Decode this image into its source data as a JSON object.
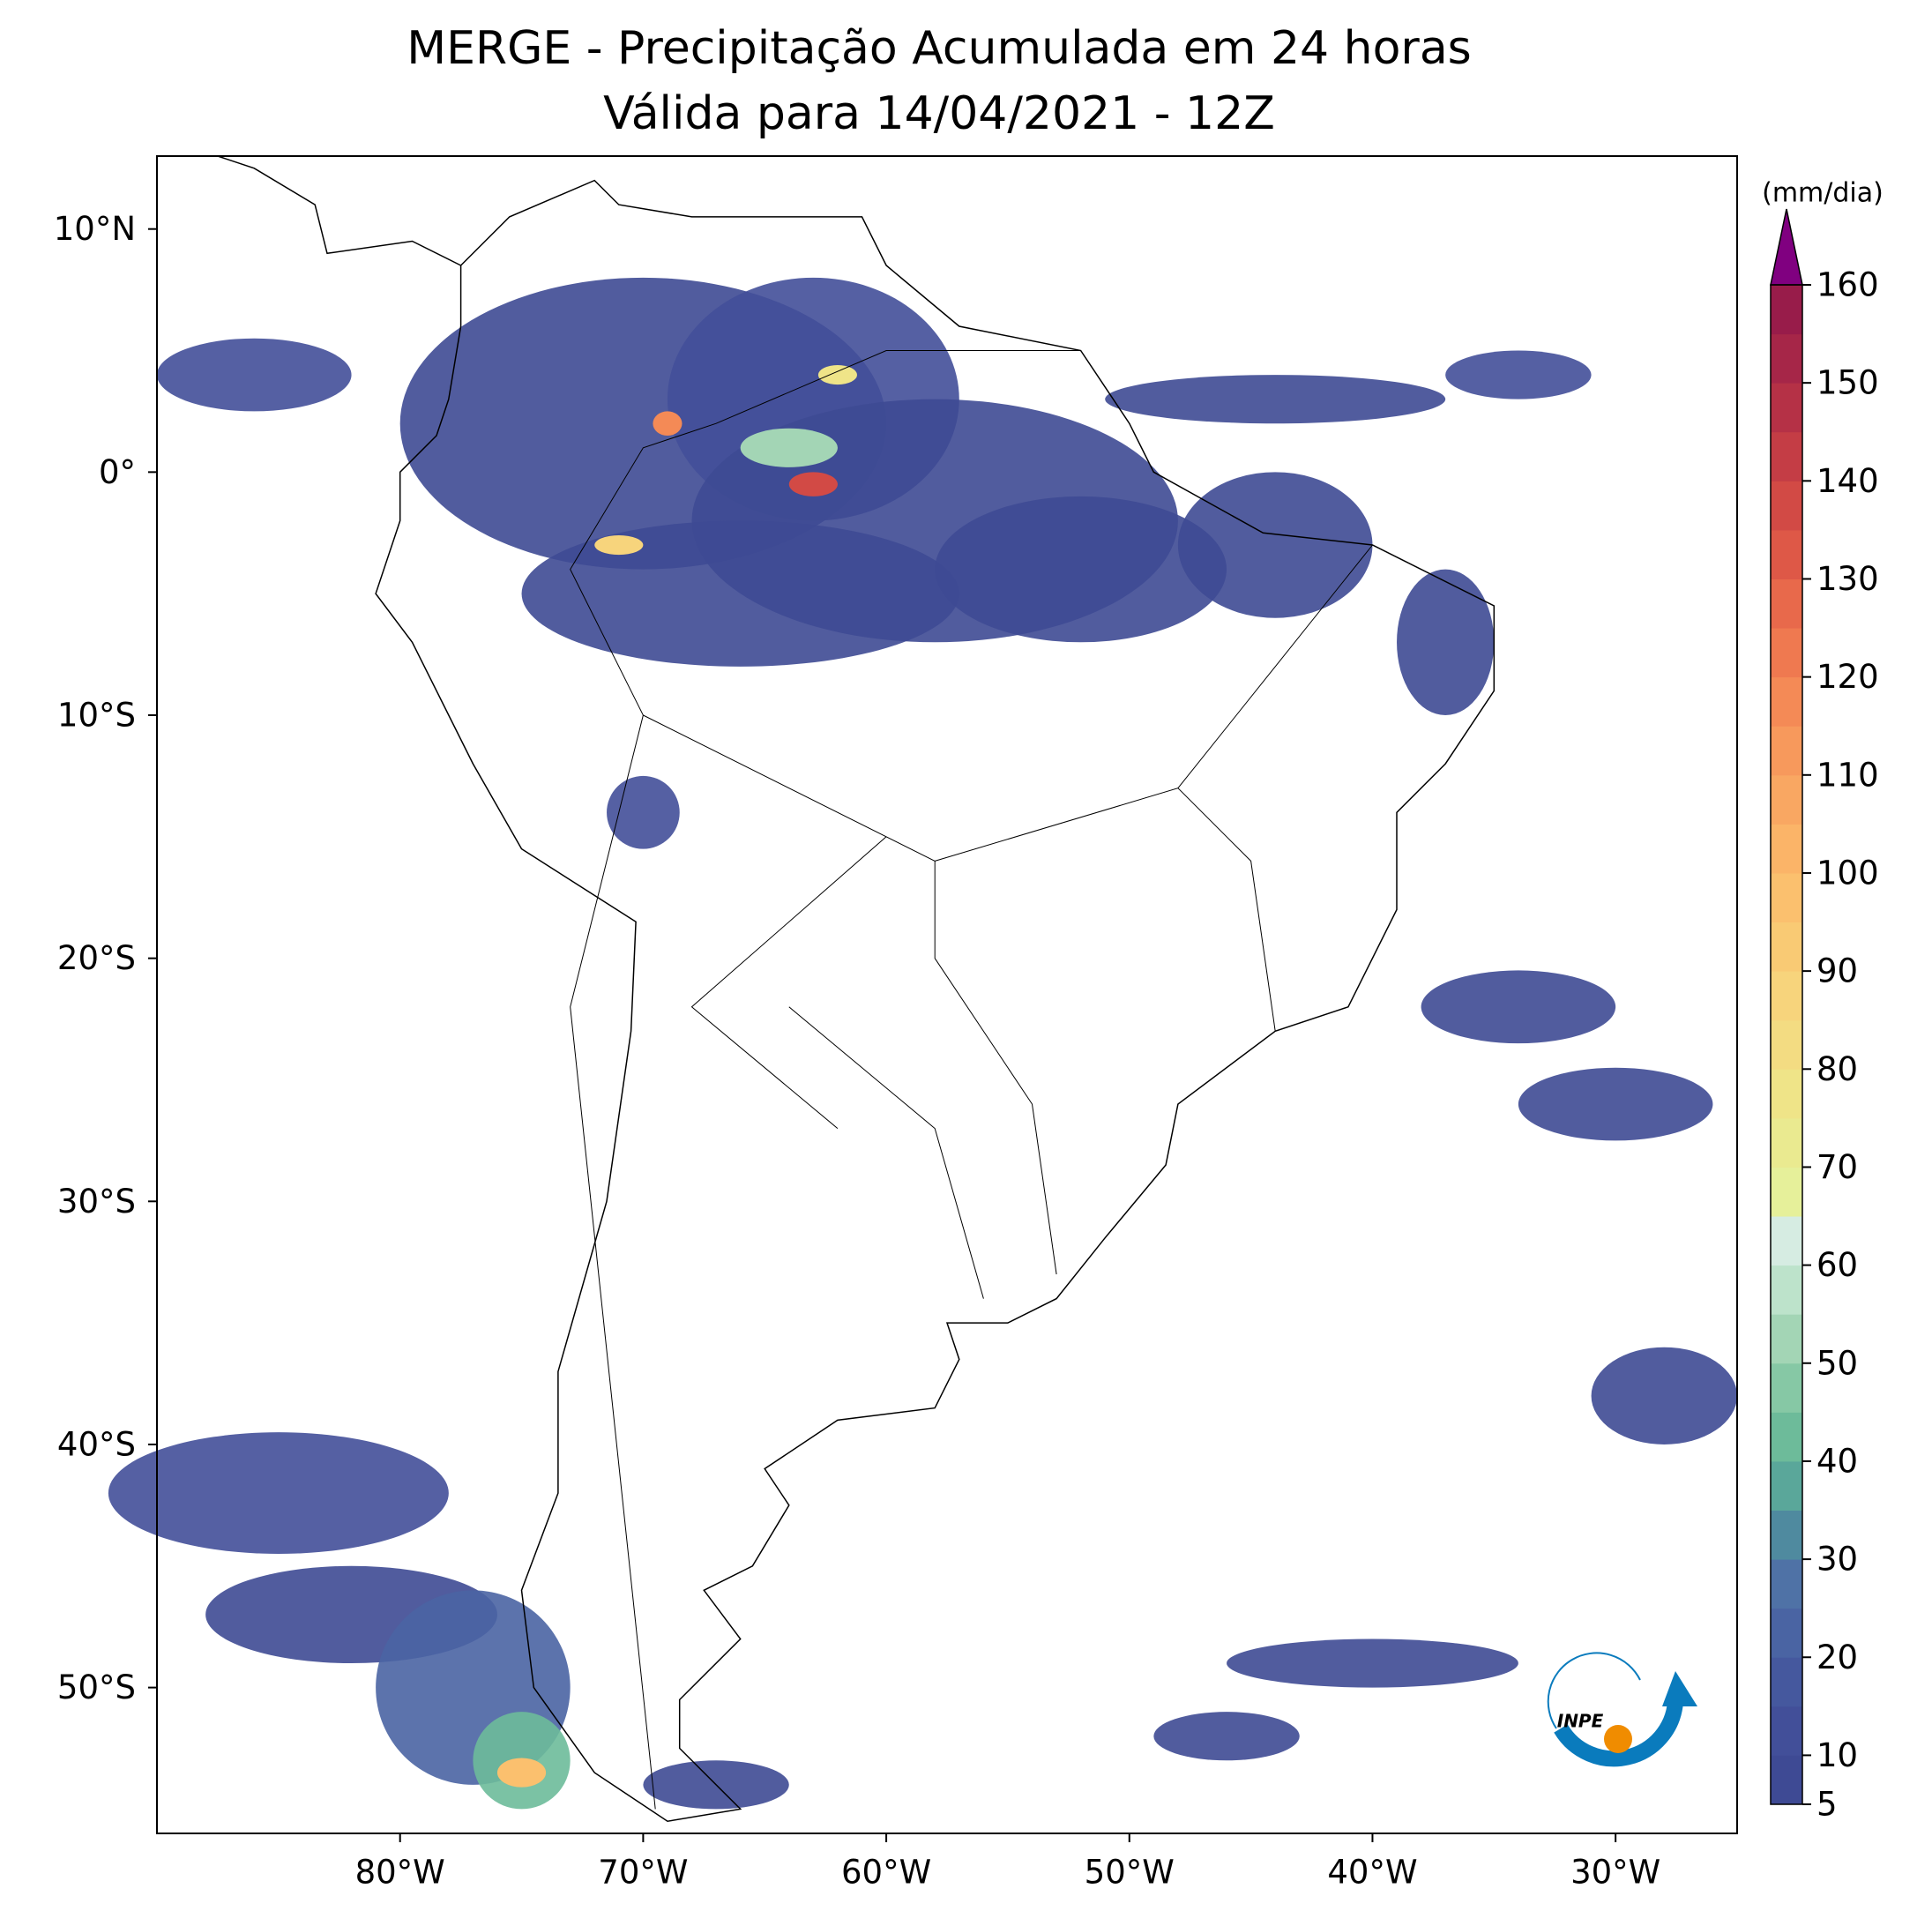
{
  "chart_data": {
    "type": "map",
    "title": "MERGE - Precipitação Acumulada em 24 horas",
    "subtitle": "Válida para 14/04/2021 - 12Z",
    "xlim": [
      -90,
      -25
    ],
    "ylim": [
      -56,
      13
    ],
    "xticks": [
      {
        "value": -80,
        "label": "80°W"
      },
      {
        "value": -70,
        "label": "70°W"
      },
      {
        "value": -60,
        "label": "60°W"
      },
      {
        "value": -50,
        "label": "50°W"
      },
      {
        "value": -40,
        "label": "40°W"
      },
      {
        "value": -30,
        "label": "30°W"
      }
    ],
    "yticks": [
      {
        "value": 10,
        "label": "10°N"
      },
      {
        "value": 0,
        "label": "0°"
      },
      {
        "value": -10,
        "label": "10°S"
      },
      {
        "value": -20,
        "label": "20°S"
      },
      {
        "value": -30,
        "label": "30°S"
      },
      {
        "value": -40,
        "label": "40°S"
      },
      {
        "value": -50,
        "label": "50°S"
      }
    ],
    "colorbar": {
      "label": "(mm/dia)",
      "lim": [
        5,
        160
      ],
      "ticks": [
        5,
        10,
        20,
        30,
        40,
        50,
        60,
        70,
        80,
        90,
        100,
        110,
        120,
        130,
        140,
        150,
        160
      ],
      "bounds": [
        5,
        10,
        15,
        20,
        25,
        30,
        35,
        40,
        45,
        50,
        55,
        60,
        65,
        70,
        75,
        80,
        85,
        90,
        95,
        100,
        105,
        110,
        115,
        120,
        125,
        130,
        135,
        140,
        145,
        150,
        155,
        160
      ],
      "colors": [
        "#3e4a94",
        "#424f99",
        "#45589e",
        "#4a64a3",
        "#4f72a6",
        "#4f8a9f",
        "#5aa79a",
        "#6dbb9a",
        "#86c8a5",
        "#a3d5b5",
        "#bde3cb",
        "#d6ece2",
        "#e6f09a",
        "#eaea90",
        "#efe488",
        "#f3dc82",
        "#f7d47c",
        "#f9ca74",
        "#fbc06e",
        "#fbb468",
        "#f9a762",
        "#f7995c",
        "#f48a56",
        "#ef7950",
        "#e8694b",
        "#de5847",
        "#d24a45",
        "#c43d45",
        "#b53146",
        "#a62648",
        "#981c4a"
      ],
      "extend_color": "#800080"
    },
    "logo_text": "INPE"
  }
}
